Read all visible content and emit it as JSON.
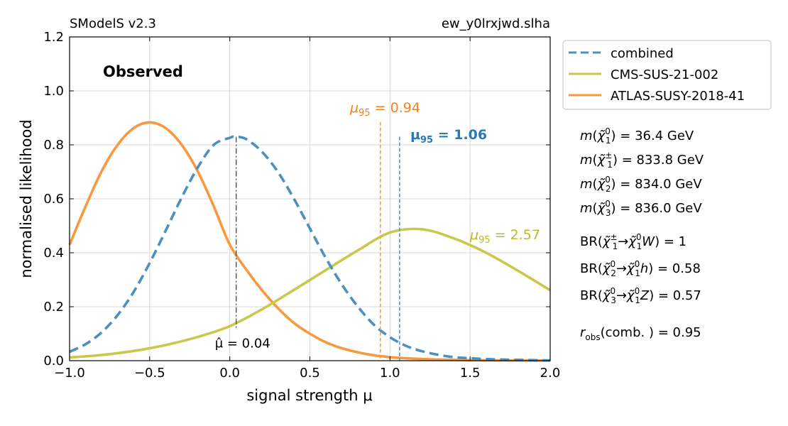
{
  "header": {
    "left": "SModelS v2.3",
    "right": "ew_y0lrxjwd.slha"
  },
  "colors": {
    "combined": "#4a90c0",
    "cms": "#c8c84a",
    "atlas": "#f8993f",
    "mu95_combined_text": "#2a78b8",
    "mu95_atlas_text": "#f38220",
    "mu95_cms_text": "#b8b828",
    "grid": "#d8d8d8",
    "muhat_line": "#555555"
  },
  "chart_data": {
    "type": "line",
    "title": "Observed",
    "xlabel": "signal strength μ",
    "ylabel": "normalised likelihood",
    "xlim": [
      -1.0,
      2.0
    ],
    "ylim": [
      0.0,
      1.2
    ],
    "xticks": [
      -1.0,
      -0.5,
      0.0,
      0.5,
      1.0,
      1.5,
      2.0
    ],
    "xtick_labels": [
      "−1.0",
      "−0.5",
      "0.0",
      "0.5",
      "1.0",
      "1.5",
      "2.0"
    ],
    "yticks": [
      0.0,
      0.2,
      0.4,
      0.6,
      0.8,
      1.0,
      1.2
    ],
    "ytick_labels": [
      "0.0",
      "0.2",
      "0.4",
      "0.6",
      "0.8",
      "1.0",
      "1.2"
    ],
    "grid": true,
    "legend_position": "outside-top-right",
    "series": [
      {
        "name": "combined",
        "style": "dashed",
        "x": [
          -1.0,
          -0.9,
          -0.8,
          -0.7,
          -0.6,
          -0.5,
          -0.4,
          -0.3,
          -0.2,
          -0.1,
          0.0,
          0.03,
          0.1,
          0.2,
          0.3,
          0.4,
          0.5,
          0.6,
          0.7,
          0.8,
          0.9,
          1.0,
          1.1,
          1.2,
          1.3,
          1.4,
          1.5,
          1.6,
          1.7,
          1.8,
          1.9,
          2.0
        ],
        "y": [
          0.033,
          0.061,
          0.105,
          0.169,
          0.255,
          0.362,
          0.482,
          0.605,
          0.716,
          0.8,
          0.826,
          0.83,
          0.822,
          0.775,
          0.7,
          0.601,
          0.49,
          0.38,
          0.282,
          0.2,
          0.133,
          0.087,
          0.055,
          0.035,
          0.022,
          0.013,
          0.009,
          0.006,
          0.004,
          0.003,
          0.002,
          0.001
        ]
      },
      {
        "name": "CMS-SUS-21-002",
        "style": "solid",
        "x": [
          -1.0,
          -0.8,
          -0.6,
          -0.4,
          -0.2,
          0.0,
          0.2,
          0.4,
          0.6,
          0.8,
          1.0,
          1.2,
          1.4,
          1.6,
          1.8,
          2.0
        ],
        "y": [
          0.012,
          0.021,
          0.036,
          0.058,
          0.088,
          0.128,
          0.19,
          0.262,
          0.336,
          0.409,
          0.475,
          0.487,
          0.453,
          0.4,
          0.333,
          0.261
        ]
      },
      {
        "name": "ATLAS-SUSY-2018-41",
        "style": "solid",
        "x": [
          -1.0,
          -0.9,
          -0.8,
          -0.7,
          -0.6,
          -0.5,
          -0.4,
          -0.3,
          -0.2,
          -0.1,
          0.0,
          0.1,
          0.2,
          0.3,
          0.4,
          0.5,
          0.6,
          0.7,
          0.8,
          0.9,
          1.0,
          1.1,
          1.2,
          1.3,
          1.4,
          1.5,
          1.6,
          1.7,
          1.8,
          1.9,
          2.0
        ],
        "y": [
          0.43,
          0.572,
          0.702,
          0.8,
          0.862,
          0.883,
          0.862,
          0.8,
          0.702,
          0.572,
          0.43,
          0.34,
          0.262,
          0.195,
          0.14,
          0.1,
          0.068,
          0.046,
          0.031,
          0.02,
          0.013,
          0.009,
          0.006,
          0.004,
          0.003,
          0.002,
          0.0015,
          0.001,
          0.001,
          0.0005,
          0.0003
        ]
      }
    ],
    "annotations": {
      "mu_hat": {
        "x": 0.04,
        "y_top": 0.83,
        "y_bottom": 0.12,
        "label": "μ̂ = 0.04"
      },
      "mu95": [
        {
          "name": "combined",
          "x": 1.06,
          "y_top": 0.83,
          "label": "μ95 = 1.06",
          "sym": "μ",
          "sub": "95",
          "rest": " = 1.06",
          "bold": true
        },
        {
          "name": "ATLAS-SUSY-2018-41",
          "x": 0.94,
          "y_top": 0.885,
          "label": "μ95 = 0.94",
          "sym": "μ",
          "sub": "95",
          "rest": " = 0.94",
          "bold": false
        },
        {
          "name": "CMS-SUS-21-002",
          "x": 2.57,
          "y_top": null,
          "label": "μ95 = 2.57",
          "sym": "μ",
          "sub": "95",
          "rest": " = 2.57",
          "bold": false
        }
      ]
    }
  },
  "legend": {
    "items": [
      {
        "label": "combined"
      },
      {
        "label": "CMS-SUS-21-002"
      },
      {
        "label": "ATLAS-SUSY-2018-41"
      }
    ]
  },
  "info": {
    "masses": [
      {
        "particle": "χ̃1⁰",
        "sup": "0",
        "sub": "1",
        "eq": " =  36.4 GeV"
      },
      {
        "particle": "χ̃1±",
        "sup": "±",
        "sub": "1",
        "eq": " =  833.8 GeV"
      },
      {
        "particle": "χ̃2⁰",
        "sup": "0",
        "sub": "2",
        "eq": " =  834.0 GeV"
      },
      {
        "particle": "χ̃3⁰",
        "sup": "0",
        "sub": "3",
        "eq": " =  836.0 GeV"
      }
    ],
    "branching": [
      {
        "from_sup": "±",
        "from_sub": "1",
        "boson": "W",
        "eq": " = 1"
      },
      {
        "from_sup": "0",
        "from_sub": "2",
        "boson": "h",
        "eq": " = 0.58"
      },
      {
        "from_sup": "0",
        "from_sub": "3",
        "boson": "Z",
        "eq": " = 0.57"
      }
    ],
    "r_obs": {
      "label": "r",
      "sub": "obs",
      "mid": "(comb. ) = ",
      "value": " 0.95"
    }
  }
}
